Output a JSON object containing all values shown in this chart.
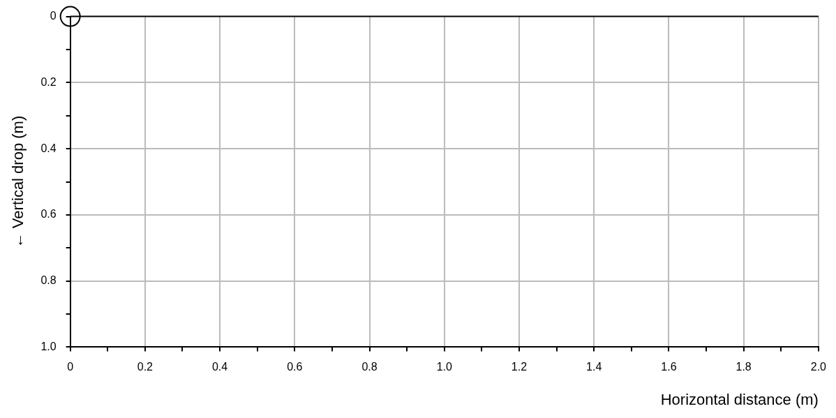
{
  "chart_data": {
    "type": "scatter",
    "xlabel": "Horizontal distance (m)",
    "ylabel": "← Vertical drop (m)",
    "x": [
      0
    ],
    "values": [
      0
    ],
    "color": "#000000",
    "marker": "circle",
    "grid": true,
    "legend": false,
    "xlim": [
      0,
      2
    ],
    "xticks": [
      0,
      {
        "value": 0.1,
        "label": null
      },
      0.2,
      {
        "value": 0.3,
        "label": null
      },
      0.4,
      {
        "value": 0.5,
        "label": null
      },
      0.6,
      {
        "value": 0.7,
        "label": null
      },
      0.8,
      {
        "value": 0.9,
        "label": null
      },
      {
        "value": 1,
        "label": "1.0"
      },
      {
        "value": 1.1,
        "label": null
      },
      1.2,
      {
        "value": 1.3,
        "label": null
      },
      1.4,
      {
        "value": 1.5,
        "label": null
      },
      1.6,
      {
        "value": 1.7,
        "label": null
      },
      1.8,
      {
        "value": 1.9,
        "label": null
      },
      {
        "value": 2,
        "label": "2.0"
      }
    ],
    "ylim": [
      1,
      0
    ],
    "yticks": [
      0,
      {
        "value": 0.1,
        "label": null
      },
      0.2,
      {
        "value": 0.3,
        "label": null
      },
      0.4,
      {
        "value": 0.5,
        "label": null
      },
      0.6,
      {
        "value": 0.7,
        "label": null
      },
      0.8,
      {
        "value": 0.9,
        "label": null
      },
      {
        "value": 1,
        "label": "1.0"
      }
    ]
  }
}
